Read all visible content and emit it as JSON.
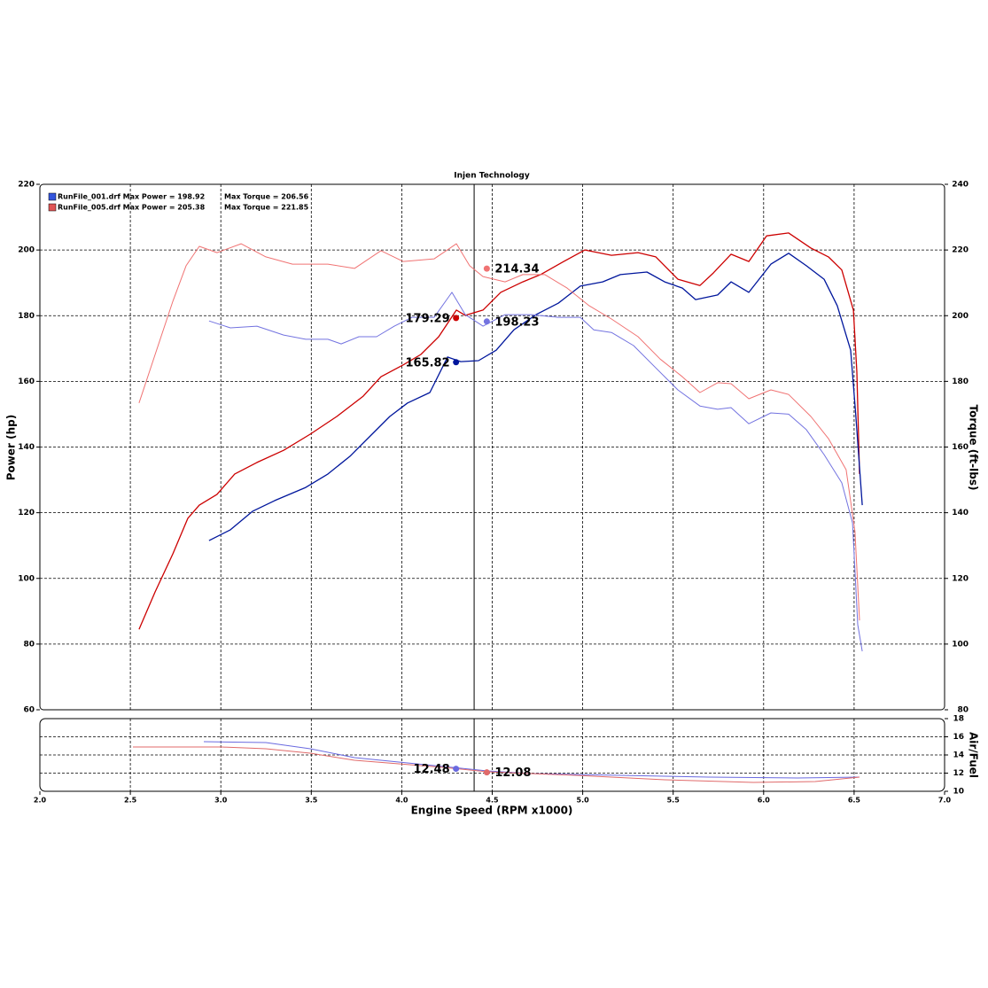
{
  "chart_data": [
    {
      "type": "line",
      "title": "Injen Technology",
      "ylabel": "Power (hp)",
      "y2label": "Torque (ft-lbs)",
      "xlim": [
        2,
        7
      ],
      "xticks": [
        2.5,
        3,
        3.5,
        4,
        4.5,
        5,
        5.5,
        6,
        6.5
      ],
      "ylim": [
        60,
        220
      ],
      "yticks": [
        60,
        80,
        100,
        120,
        140,
        160,
        180,
        200,
        220
      ],
      "y2lim": [
        80,
        240
      ],
      "y2ticks": [
        80,
        100,
        120,
        140,
        160,
        180,
        200,
        220,
        240
      ],
      "grid": true,
      "cursor_x": 4.4,
      "legend_position": "upper left",
      "legend": [
        {
          "label": "RunFile_001.drf Max Power = 198.92",
          "torque_label": "Max Torque = 206.56",
          "color": "#3355dd"
        },
        {
          "label": "RunFile_005.drf Max Power = 205.38",
          "torque_label": "Max Torque = 221.85",
          "color": "#e05555"
        }
      ],
      "series": [
        {
          "color": "#cc0000",
          "axis": "y",
          "x": [
            2.548,
            2.637,
            2.735,
            2.818,
            2.881,
            2.979,
            3.077,
            3.2,
            3.347,
            3.494,
            3.641,
            3.787,
            3.885,
            4.008,
            4.106,
            4.204,
            4.302,
            4.351,
            4.449,
            4.547,
            4.669,
            4.767,
            4.889,
            5.012,
            5.159,
            5.306,
            5.404,
            5.526,
            5.648,
            5.722,
            5.82,
            5.918,
            6.016,
            6.138,
            6.261,
            6.358,
            6.432,
            6.496,
            6.515,
            6.53
          ],
          "values": [
            84.5,
            95.9,
            107.5,
            118.3,
            122.3,
            125.6,
            131.8,
            135.3,
            139.0,
            143.9,
            149.3,
            155.5,
            161.4,
            165.0,
            168.2,
            173.6,
            181.7,
            180.1,
            181.7,
            187.1,
            190.3,
            192.5,
            196.3,
            200.0,
            198.4,
            199.2,
            197.9,
            191.1,
            189.2,
            193.0,
            198.7,
            196.5,
            204.3,
            205.2,
            200.6,
            197.9,
            193.9,
            181.7,
            162.8,
            131.8
          ],
          "marker": {
            "x": 4.3,
            "value": 179.29
          }
        },
        {
          "color": "#00169c",
          "axis": "y",
          "x": [
            2.935,
            3.053,
            3.175,
            3.298,
            3.469,
            3.592,
            3.714,
            3.836,
            3.934,
            4.032,
            4.155,
            4.253,
            4.326,
            4.424,
            4.522,
            4.62,
            4.742,
            4.865,
            4.987,
            5.11,
            5.208,
            5.355,
            5.453,
            5.551,
            5.624,
            5.746,
            5.82,
            5.918,
            6.04,
            6.138,
            6.236,
            6.334,
            6.407,
            6.481,
            6.51,
            6.545
          ],
          "values": [
            111.5,
            114.8,
            120.4,
            123.7,
            127.7,
            131.8,
            137.2,
            143.9,
            149.3,
            153.4,
            156.6,
            167.4,
            166.0,
            166.3,
            169.5,
            175.7,
            180.3,
            183.8,
            189.0,
            190.3,
            192.5,
            193.3,
            190.3,
            188.4,
            184.9,
            186.3,
            190.3,
            187.1,
            195.7,
            199.0,
            195.2,
            191.1,
            183.0,
            169.5,
            149.3,
            122.3
          ],
          "marker": {
            "x": 4.3,
            "value": 165.82
          }
        },
        {
          "color": "#f07373",
          "axis": "y2",
          "x": [
            2.548,
            2.637,
            2.735,
            2.808,
            2.881,
            2.979,
            3.112,
            3.249,
            3.396,
            3.592,
            3.739,
            3.885,
            4.008,
            4.179,
            4.302,
            4.375,
            4.449,
            4.571,
            4.669,
            4.791,
            4.914,
            5.036,
            5.159,
            5.306,
            5.428,
            5.551,
            5.648,
            5.746,
            5.82,
            5.918,
            6.04,
            6.138,
            6.261,
            6.358,
            6.456,
            6.505,
            6.53
          ],
          "values": [
            173.4,
            188.2,
            204.4,
            215.2,
            221.1,
            219.2,
            221.9,
            217.9,
            215.7,
            215.7,
            214.4,
            219.8,
            216.5,
            217.3,
            221.9,
            215.2,
            211.9,
            210.3,
            212.5,
            212.5,
            208.4,
            203.0,
            199.0,
            193.6,
            186.8,
            181.4,
            176.6,
            179.6,
            179.3,
            174.7,
            177.4,
            176.0,
            169.3,
            162.6,
            153.1,
            134.2,
            107.2
          ],
          "marker": {
            "x": 4.47,
            "value": 214.34
          }
        },
        {
          "color": "#7373e0",
          "axis": "y2",
          "x": [
            2.935,
            3.053,
            3.2,
            3.347,
            3.469,
            3.592,
            3.665,
            3.763,
            3.861,
            3.959,
            4.057,
            4.179,
            4.277,
            4.351,
            4.449,
            4.571,
            4.718,
            4.865,
            4.987,
            5.061,
            5.159,
            5.281,
            5.404,
            5.526,
            5.648,
            5.746,
            5.82,
            5.918,
            6.04,
            6.138,
            6.236,
            6.334,
            6.432,
            6.491,
            6.52,
            6.545
          ],
          "values": [
            198.4,
            196.3,
            196.8,
            194.1,
            192.8,
            192.8,
            191.4,
            193.6,
            193.6,
            196.8,
            199.5,
            199.5,
            207.1,
            200.3,
            196.8,
            200.3,
            200.3,
            199.5,
            199.5,
            195.7,
            194.9,
            190.9,
            184.1,
            177.4,
            172.5,
            171.5,
            172.0,
            167.1,
            170.4,
            170.0,
            165.3,
            157.7,
            149.1,
            136.9,
            105.9,
            97.8
          ],
          "marker": {
            "x": 4.47,
            "value": 198.23
          }
        }
      ]
    },
    {
      "type": "line",
      "xlabel": "Engine Speed (RPM x1000)",
      "ylabel": "Air/Fuel",
      "yaxis_side": "right",
      "xlim": [
        2,
        7
      ],
      "xticks": [
        {
          "value": 2,
          "label": "2.0"
        },
        2.5,
        {
          "value": 3,
          "label": "3.0"
        },
        3.5,
        {
          "value": 4,
          "label": "4.0"
        },
        4.5,
        {
          "value": 5,
          "label": "5.0"
        },
        5.5,
        {
          "value": 6,
          "label": "6.0"
        },
        6.5,
        {
          "value": 7,
          "label": "7.0"
        }
      ],
      "ylim": [
        10,
        18
      ],
      "yticks": [
        10,
        12,
        14,
        16,
        18
      ],
      "grid": true,
      "cursor_x": 4.4,
      "series": [
        {
          "color": "#6a6ae0",
          "x": [
            2.906,
            3.249,
            3.494,
            3.739,
            3.983,
            4.228,
            4.473,
            4.718,
            5.208,
            5.697,
            6.187,
            6.53
          ],
          "values": [
            15.46,
            15.37,
            14.68,
            13.71,
            13.22,
            12.73,
            12.24,
            11.95,
            11.76,
            11.56,
            11.46,
            11.56
          ],
          "marker": {
            "x": 4.3,
            "value": 12.48
          }
        },
        {
          "color": "#e06a6a",
          "x": [
            2.514,
            3.004,
            3.249,
            3.494,
            3.739,
            3.983,
            4.228,
            4.473,
            4.963,
            5.453,
            5.943,
            6.285,
            6.53
          ],
          "values": [
            14.88,
            14.88,
            14.68,
            14.2,
            13.41,
            13.02,
            12.63,
            12.15,
            11.76,
            11.27,
            10.98,
            11.07,
            11.56
          ],
          "marker": {
            "x": 4.47,
            "value": 12.08
          }
        }
      ]
    }
  ]
}
